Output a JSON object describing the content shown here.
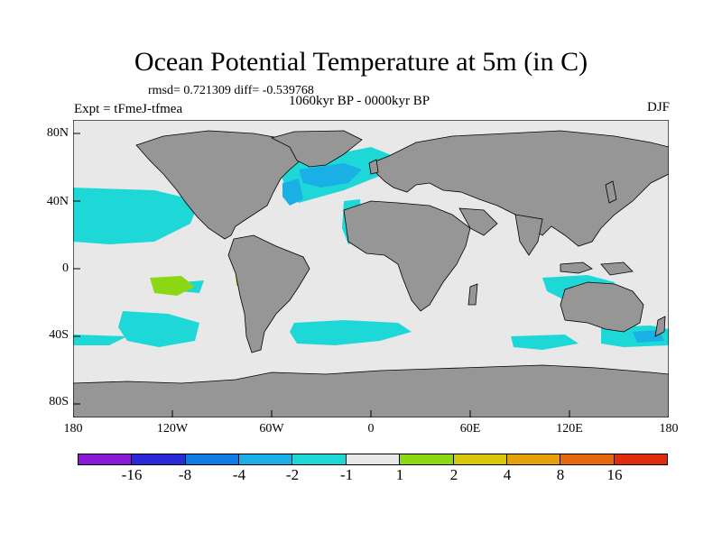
{
  "title": "Ocean Potential Temperature at 5m (in C)",
  "stats": "rmsd= 0.721309 diff= -0.539768",
  "experiment": "Expt = tFmeJ-tfmea",
  "period": "1060kyr BP - 0000kyr BP",
  "season": "DJF",
  "y_ticks": [
    "80N",
    "40N",
    "0",
    "40S",
    "80S"
  ],
  "x_ticks": [
    "180",
    "120W",
    "60W",
    "0",
    "60E",
    "120E",
    "180"
  ],
  "colorbar": {
    "labels": [
      "-16",
      "-8",
      "-4",
      "-2",
      "-1",
      "1",
      "2",
      "4",
      "8",
      "16"
    ],
    "colors": [
      "#8a19d8",
      "#2a2ad8",
      "#0f7ce6",
      "#1ab0e6",
      "#1ed8d8",
      "#e8e8e8",
      "#8cd814",
      "#d8c80c",
      "#e6a00c",
      "#e66a0c",
      "#e02c0c"
    ]
  },
  "map_colors": {
    "background": "#e8e8e8",
    "land": "#969696",
    "cool_minus1": "#1ed8d8",
    "cool_minus2": "#1ab0e6",
    "warm_plus1": "#8cd814"
  }
}
